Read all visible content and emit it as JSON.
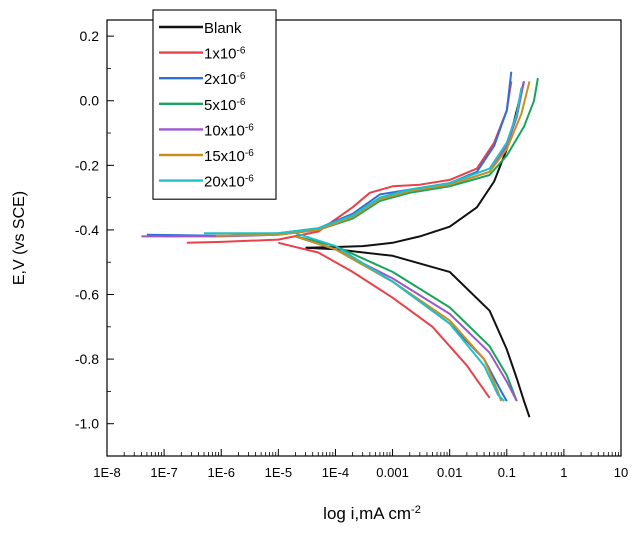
{
  "chart_data": {
    "type": "line",
    "title": "",
    "xlabel": "log i,mA cm",
    "xlabel_sup": "-2",
    "ylabel": "E,V (vs SCE)",
    "xscale": "log",
    "xlim": [
      1e-08,
      10
    ],
    "ylim": [
      -1.1,
      0.25
    ],
    "grid": false,
    "legend_position": "top-left",
    "x_tick_labels": [
      "1E-8",
      "1E-7",
      "1E-6",
      "1E-5",
      "1E-4",
      "0.001",
      "0.01",
      "0.1",
      "1",
      "10"
    ],
    "y_tick_values": [
      0.2,
      0.0,
      -0.2,
      -0.4,
      -0.6,
      -0.8,
      -1.0
    ],
    "y_tick_labels": [
      "0.2",
      "0.0",
      "-0.2",
      "-0.4",
      "-0.6",
      "-0.8",
      "-1.0"
    ],
    "series": [
      {
        "name": "Blank",
        "label_base": "Blank",
        "label_sup": "",
        "color": "#111111",
        "anodic": [
          [
            3e-05,
            -0.455
          ],
          [
            0.0001,
            -0.453
          ],
          [
            0.0003,
            -0.45
          ],
          [
            0.001,
            -0.44
          ],
          [
            0.003,
            -0.42
          ],
          [
            0.01,
            -0.39
          ],
          [
            0.03,
            -0.33
          ],
          [
            0.06,
            -0.25
          ],
          [
            0.1,
            -0.15
          ],
          [
            0.15,
            -0.03
          ],
          [
            0.2,
            0.06
          ]
        ],
        "cathodic": [
          [
            3e-05,
            -0.455
          ],
          [
            0.0001,
            -0.46
          ],
          [
            0.001,
            -0.48
          ],
          [
            0.01,
            -0.53
          ],
          [
            0.05,
            -0.65
          ],
          [
            0.1,
            -0.77
          ],
          [
            0.15,
            -0.86
          ],
          [
            0.2,
            -0.93
          ],
          [
            0.25,
            -0.98
          ]
        ]
      },
      {
        "name": "1x10-6",
        "label_base": "1x10",
        "label_sup": "-6",
        "color": "#e8414a",
        "anodic": [
          [
            2.5e-07,
            -0.44
          ],
          [
            1e-06,
            -0.437
          ],
          [
            1e-05,
            -0.43
          ],
          [
            5e-05,
            -0.405
          ],
          [
            0.0002,
            -0.33
          ],
          [
            0.0004,
            -0.285
          ],
          [
            0.001,
            -0.265
          ],
          [
            0.003,
            -0.26
          ],
          [
            0.01,
            -0.245
          ],
          [
            0.03,
            -0.21
          ],
          [
            0.06,
            -0.13
          ],
          [
            0.1,
            -0.03
          ],
          [
            0.12,
            0.06
          ]
        ],
        "cathodic": [
          [
            1e-05,
            -0.44
          ],
          [
            5e-05,
            -0.47
          ],
          [
            0.0002,
            -0.53
          ],
          [
            0.001,
            -0.61
          ],
          [
            0.005,
            -0.7
          ],
          [
            0.02,
            -0.82
          ],
          [
            0.05,
            -0.92
          ]
        ]
      },
      {
        "name": "2x10-6",
        "label_base": "2x10",
        "label_sup": "-6",
        "color": "#2f6fd6",
        "anodic": [
          [
            5e-08,
            -0.415
          ],
          [
            1e-06,
            -0.418
          ],
          [
            1e-05,
            -0.41
          ],
          [
            5e-05,
            -0.395
          ],
          [
            0.0002,
            -0.35
          ],
          [
            0.0006,
            -0.29
          ],
          [
            0.002,
            -0.275
          ],
          [
            0.01,
            -0.255
          ],
          [
            0.03,
            -0.22
          ],
          [
            0.06,
            -0.14
          ],
          [
            0.1,
            -0.03
          ],
          [
            0.12,
            0.09
          ]
        ],
        "cathodic": [
          [
            2e-05,
            -0.42
          ],
          [
            0.0001,
            -0.46
          ],
          [
            0.001,
            -0.56
          ],
          [
            0.01,
            -0.69
          ],
          [
            0.04,
            -0.8
          ],
          [
            0.08,
            -0.9
          ],
          [
            0.1,
            -0.93
          ]
        ]
      },
      {
        "name": "5x10-6",
        "label_base": "5x10",
        "label_sup": "-6",
        "color": "#19a35b",
        "anodic": [
          [
            1e-07,
            -0.42
          ],
          [
            1e-06,
            -0.418
          ],
          [
            1e-05,
            -0.412
          ],
          [
            5e-05,
            -0.4
          ],
          [
            0.0002,
            -0.365
          ],
          [
            0.0006,
            -0.31
          ],
          [
            0.002,
            -0.285
          ],
          [
            0.01,
            -0.265
          ],
          [
            0.05,
            -0.23
          ],
          [
            0.1,
            -0.17
          ],
          [
            0.2,
            -0.08
          ],
          [
            0.3,
            0.0
          ],
          [
            0.35,
            0.07
          ]
        ],
        "cathodic": [
          [
            2e-05,
            -0.42
          ],
          [
            0.0001,
            -0.45
          ],
          [
            0.001,
            -0.53
          ],
          [
            0.01,
            -0.64
          ],
          [
            0.05,
            -0.76
          ],
          [
            0.1,
            -0.85
          ],
          [
            0.15,
            -0.93
          ]
        ]
      },
      {
        "name": "10x10-6",
        "label_base": "10x10",
        "label_sup": "-6",
        "color": "#9b59c9",
        "anodic": [
          [
            4e-08,
            -0.42
          ],
          [
            1e-06,
            -0.42
          ],
          [
            1e-05,
            -0.415
          ],
          [
            5e-05,
            -0.4
          ],
          [
            0.0002,
            -0.36
          ],
          [
            0.0006,
            -0.305
          ],
          [
            0.002,
            -0.28
          ],
          [
            0.01,
            -0.26
          ],
          [
            0.05,
            -0.22
          ],
          [
            0.1,
            -0.14
          ],
          [
            0.15,
            -0.05
          ],
          [
            0.2,
            0.06
          ]
        ],
        "cathodic": [
          [
            2e-05,
            -0.42
          ],
          [
            0.0001,
            -0.46
          ],
          [
            0.001,
            -0.55
          ],
          [
            0.01,
            -0.66
          ],
          [
            0.05,
            -0.78
          ],
          [
            0.1,
            -0.87
          ],
          [
            0.15,
            -0.93
          ]
        ]
      },
      {
        "name": "15x10-6",
        "label_base": "15x10",
        "label_sup": "-6",
        "color": "#c8901e",
        "anodic": [
          [
            8e-07,
            -0.418
          ],
          [
            1e-05,
            -0.415
          ],
          [
            5e-05,
            -0.4
          ],
          [
            0.0002,
            -0.36
          ],
          [
            0.0006,
            -0.305
          ],
          [
            0.002,
            -0.28
          ],
          [
            0.01,
            -0.26
          ],
          [
            0.05,
            -0.22
          ],
          [
            0.1,
            -0.15
          ],
          [
            0.18,
            -0.04
          ],
          [
            0.25,
            0.06
          ]
        ],
        "cathodic": [
          [
            2e-05,
            -0.42
          ],
          [
            0.0001,
            -0.46
          ],
          [
            0.001,
            -0.56
          ],
          [
            0.01,
            -0.68
          ],
          [
            0.04,
            -0.8
          ],
          [
            0.07,
            -0.9
          ],
          [
            0.08,
            -0.93
          ]
        ]
      },
      {
        "name": "20x10-6",
        "label_base": "20x10",
        "label_sup": "-6",
        "color": "#21bfc7",
        "anodic": [
          [
            5e-07,
            -0.41
          ],
          [
            1e-05,
            -0.41
          ],
          [
            5e-05,
            -0.395
          ],
          [
            0.0002,
            -0.355
          ],
          [
            0.0006,
            -0.3
          ],
          [
            0.002,
            -0.275
          ],
          [
            0.01,
            -0.255
          ],
          [
            0.05,
            -0.21
          ],
          [
            0.1,
            -0.13
          ],
          [
            0.15,
            -0.04
          ],
          [
            0.18,
            0.04
          ]
        ],
        "cathodic": [
          [
            2e-05,
            -0.41
          ],
          [
            0.0001,
            -0.45
          ],
          [
            0.001,
            -0.56
          ],
          [
            0.01,
            -0.69
          ],
          [
            0.04,
            -0.82
          ],
          [
            0.07,
            -0.91
          ],
          [
            0.09,
            -0.93
          ]
        ]
      }
    ]
  }
}
